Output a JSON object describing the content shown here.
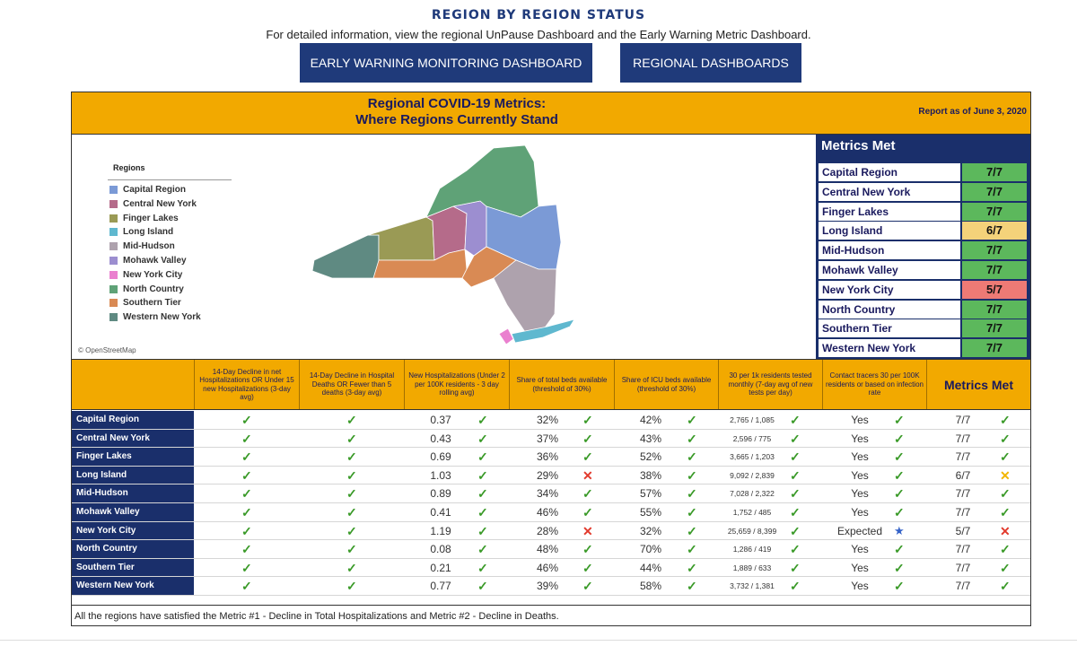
{
  "page": {
    "title": "REGION BY REGION STATUS",
    "subtitle": "For detailed information, view the regional UnPause Dashboard and the Early Warning Metric Dashboard.",
    "buttons": {
      "early_warning": "EARLY WARNING MONITORING DASHBOARD",
      "regional": "REGIONAL DASHBOARDS"
    }
  },
  "panel": {
    "title_line1": "Regional COVID-19 Metrics:",
    "title_line2": "Where Regions Currently Stand",
    "report_date": "Report as of June 3, 2020",
    "map": {
      "legend_title": "Regions",
      "attribution": "© OpenStreetMap",
      "legend": [
        {
          "name": "Capital Region",
          "color": "#7b9ad6"
        },
        {
          "name": "Central New York",
          "color": "#b56b8a"
        },
        {
          "name": "Finger Lakes",
          "color": "#9a9a55"
        },
        {
          "name": "Long Island",
          "color": "#5fb8cf"
        },
        {
          "name": "Mid-Hudson",
          "color": "#aea2ad"
        },
        {
          "name": "Mohawk Valley",
          "color": "#9c8ed0"
        },
        {
          "name": "New York City",
          "color": "#ea80cf"
        },
        {
          "name": "North Country",
          "color": "#5fa277"
        },
        {
          "name": "Southern Tier",
          "color": "#d98a54"
        },
        {
          "name": "Western New York",
          "color": "#5f8a82"
        }
      ]
    },
    "metrics_met_box": {
      "title": "Metrics Met",
      "rows": [
        {
          "name": "Capital Region",
          "value": "7/7",
          "color": "#5cb85c"
        },
        {
          "name": "Central New York",
          "value": "7/7",
          "color": "#5cb85c"
        },
        {
          "name": "Finger Lakes",
          "value": "7/7",
          "color": "#5cb85c"
        },
        {
          "name": "Long Island",
          "value": "6/7",
          "color": "#f4d27a"
        },
        {
          "name": "Mid-Hudson",
          "value": "7/7",
          "color": "#5cb85c"
        },
        {
          "name": "Mohawk Valley",
          "value": "7/7",
          "color": "#5cb85c"
        },
        {
          "name": "New York City",
          "value": "5/7",
          "color": "#ee7a75"
        },
        {
          "name": "North Country",
          "value": "7/7",
          "color": "#5cb85c"
        },
        {
          "name": "Southern Tier",
          "value": "7/7",
          "color": "#5cb85c"
        },
        {
          "name": "Western New York",
          "value": "7/7",
          "color": "#5cb85c"
        }
      ]
    },
    "table": {
      "headers": [
        "14-Day Decline in net Hospitalizations OR Under 15 new Hospitalizations (3-day avg)",
        "14-Day Decline in Hospital Deaths OR Fewer than 5 deaths (3-day avg)",
        "New Hospitalizations (Under 2 per 100K residents - 3 day rolling avg)",
        "Share of total beds available (threshold of 30%)",
        "Share of ICU beds available (threshold of 30%)",
        "30 per 1k residents tested monthly (7-day avg of new tests per day)",
        "Contact tracers 30 per 100K residents or based on infection rate",
        "Metrics Met"
      ],
      "rows": [
        {
          "region": "Capital Region",
          "m1": "ok",
          "m2": "ok",
          "hosp": "0.37",
          "hosp_s": "ok",
          "beds": "32%",
          "beds_s": "ok",
          "icu": "42%",
          "icu_s": "ok",
          "tests": "2,765 / 1,085",
          "tests_s": "ok",
          "tracers": "Yes",
          "tracers_s": "ok",
          "met": "7/7",
          "met_s": "ok"
        },
        {
          "region": "Central New York",
          "m1": "ok",
          "m2": "ok",
          "hosp": "0.43",
          "hosp_s": "ok",
          "beds": "37%",
          "beds_s": "ok",
          "icu": "43%",
          "icu_s": "ok",
          "tests": "2,596 / 775",
          "tests_s": "ok",
          "tracers": "Yes",
          "tracers_s": "ok",
          "met": "7/7",
          "met_s": "ok"
        },
        {
          "region": "Finger Lakes",
          "m1": "ok",
          "m2": "ok",
          "hosp": "0.69",
          "hosp_s": "ok",
          "beds": "36%",
          "beds_s": "ok",
          "icu": "52%",
          "icu_s": "ok",
          "tests": "3,665 / 1,203",
          "tests_s": "ok",
          "tracers": "Yes",
          "tracers_s": "ok",
          "met": "7/7",
          "met_s": "ok"
        },
        {
          "region": "Long Island",
          "m1": "ok",
          "m2": "ok",
          "hosp": "1.03",
          "hosp_s": "ok",
          "beds": "29%",
          "beds_s": "bad",
          "icu": "38%",
          "icu_s": "ok",
          "tests": "9,092 / 2,839",
          "tests_s": "ok",
          "tracers": "Yes",
          "tracers_s": "ok",
          "met": "6/7",
          "met_s": "warn"
        },
        {
          "region": "Mid-Hudson",
          "m1": "ok",
          "m2": "ok",
          "hosp": "0.89",
          "hosp_s": "ok",
          "beds": "34%",
          "beds_s": "ok",
          "icu": "57%",
          "icu_s": "ok",
          "tests": "7,028 / 2,322",
          "tests_s": "ok",
          "tracers": "Yes",
          "tracers_s": "ok",
          "met": "7/7",
          "met_s": "ok"
        },
        {
          "region": "Mohawk Valley",
          "m1": "ok",
          "m2": "ok",
          "hosp": "0.41",
          "hosp_s": "ok",
          "beds": "46%",
          "beds_s": "ok",
          "icu": "55%",
          "icu_s": "ok",
          "tests": "1,752 / 485",
          "tests_s": "ok",
          "tracers": "Yes",
          "tracers_s": "ok",
          "met": "7/7",
          "met_s": "ok"
        },
        {
          "region": "New York City",
          "m1": "ok",
          "m2": "ok",
          "hosp": "1.19",
          "hosp_s": "ok",
          "beds": "28%",
          "beds_s": "bad",
          "icu": "32%",
          "icu_s": "ok",
          "tests": "25,659 / 8,399",
          "tests_s": "ok",
          "tracers": "Expected",
          "tracers_s": "star",
          "met": "5/7",
          "met_s": "bad"
        },
        {
          "region": "North Country",
          "m1": "ok",
          "m2": "ok",
          "hosp": "0.08",
          "hosp_s": "ok",
          "beds": "48%",
          "beds_s": "ok",
          "icu": "70%",
          "icu_s": "ok",
          "tests": "1,286 / 419",
          "tests_s": "ok",
          "tracers": "Yes",
          "tracers_s": "ok",
          "met": "7/7",
          "met_s": "ok"
        },
        {
          "region": "Southern Tier",
          "m1": "ok",
          "m2": "ok",
          "hosp": "0.21",
          "hosp_s": "ok",
          "beds": "46%",
          "beds_s": "ok",
          "icu": "44%",
          "icu_s": "ok",
          "tests": "1,889 / 633",
          "tests_s": "ok",
          "tracers": "Yes",
          "tracers_s": "ok",
          "met": "7/7",
          "met_s": "ok"
        },
        {
          "region": "Western New York",
          "m1": "ok",
          "m2": "ok",
          "hosp": "0.77",
          "hosp_s": "ok",
          "beds": "39%",
          "beds_s": "ok",
          "icu": "58%",
          "icu_s": "ok",
          "tests": "3,732 / 1,381",
          "tests_s": "ok",
          "tracers": "Yes",
          "tracers_s": "ok",
          "met": "7/7",
          "met_s": "ok"
        }
      ]
    },
    "footer_note": "All the regions have satisfied the Metric #1 - Decline in Total Hospitalizations and Metric #2 - Decline in Deaths."
  }
}
